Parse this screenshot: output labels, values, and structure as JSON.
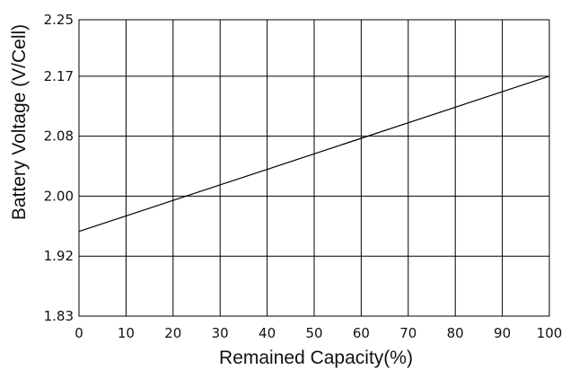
{
  "chart_data": {
    "type": "line",
    "title": "",
    "xlabel": "Remained Capacity(%)",
    "ylabel": "Battery Voltage (V/Cell)",
    "xlim": [
      0,
      100
    ],
    "x_ticks": [
      0,
      10,
      20,
      30,
      40,
      50,
      60,
      70,
      80,
      90,
      100
    ],
    "x_tick_labels": [
      "0",
      "10",
      "20",
      "30",
      "40",
      "50",
      "60",
      "70",
      "80",
      "90",
      "100"
    ],
    "y_ticks": [
      1.83,
      1.915,
      2.0,
      2.085,
      2.17,
      2.25
    ],
    "y_tick_labels": [
      "1.83",
      "1.92",
      "2.00",
      "2.08",
      "2.17",
      "2.25"
    ],
    "grid": true,
    "legend": "none",
    "series": [
      {
        "x": [
          0,
          100
        ],
        "y": [
          1.95,
          2.17
        ]
      }
    ],
    "colors": {
      "line": "#000000",
      "grid": "#000000",
      "background": "#ffffff"
    }
  }
}
